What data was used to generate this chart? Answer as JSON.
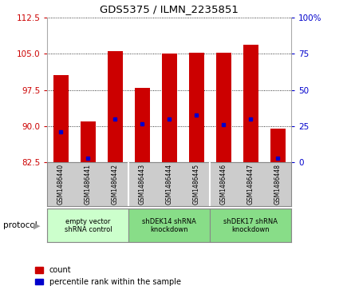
{
  "title": "GDS5375 / ILMN_2235851",
  "samples": [
    "GSM1486440",
    "GSM1486441",
    "GSM1486442",
    "GSM1486443",
    "GSM1486444",
    "GSM1486445",
    "GSM1486446",
    "GSM1486447",
    "GSM1486448"
  ],
  "count_values": [
    100.5,
    91.0,
    105.5,
    98.0,
    105.0,
    105.2,
    105.2,
    106.8,
    89.5
  ],
  "percentile_values": [
    88.8,
    83.3,
    91.5,
    90.5,
    91.5,
    92.3,
    90.3,
    91.5,
    83.3
  ],
  "baseline": 82.5,
  "ylim_left": [
    82.5,
    112.5
  ],
  "yticks_left": [
    82.5,
    90.0,
    97.5,
    105.0,
    112.5
  ],
  "ylim_right": [
    0,
    100
  ],
  "yticks_right": [
    0,
    25,
    50,
    75,
    100
  ],
  "yticklabels_right": [
    "0",
    "25",
    "50",
    "75",
    "100%"
  ],
  "bar_color": "#cc0000",
  "blue_color": "#0000cc",
  "bar_width": 0.55,
  "groups": [
    {
      "label": "empty vector\nshRNA control",
      "start": 0,
      "end": 3,
      "color": "#ccffcc"
    },
    {
      "label": "shDEK14 shRNA\nknockdown",
      "start": 3,
      "end": 6,
      "color": "#88dd88"
    },
    {
      "label": "shDEK17 shRNA\nknockdown",
      "start": 6,
      "end": 9,
      "color": "#88dd88"
    }
  ],
  "protocol_label": "protocol",
  "legend_count_label": "count",
  "legend_percentile_label": "percentile rank within the sample",
  "plot_bg": "#ffffff",
  "tick_color_left": "#cc0000",
  "tick_color_right": "#0000cc",
  "sample_box_color": "#cccccc",
  "separator_color": "#ffffff"
}
